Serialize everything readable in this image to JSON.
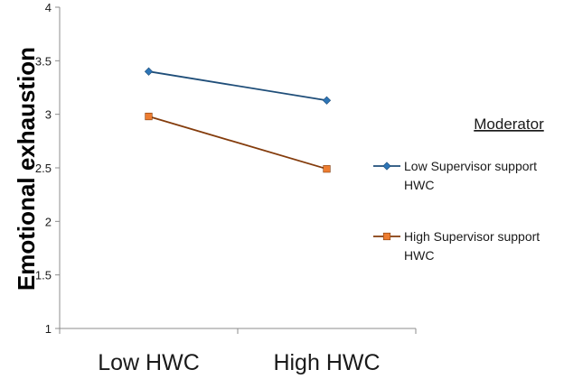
{
  "chart_data": {
    "type": "line",
    "categories": [
      "Low HWC",
      "High HWC"
    ],
    "ylabel": "Emotional exhaustion",
    "xlabel": "",
    "ylim": [
      1,
      4
    ],
    "yticks": [
      "1",
      "1.5",
      "2",
      "2.5",
      "3",
      "3.5",
      "4"
    ],
    "grid": false,
    "legend_position": "right",
    "legend_title": "Moderator",
    "series": [
      {
        "name": "Low Supervisor support HWC",
        "name_lines": [
          "Low Supervisor support",
          "HWC"
        ],
        "values": [
          3.4,
          3.13
        ],
        "color": "#1f4e79",
        "marker": "diamond",
        "marker_color": "#2e75b6"
      },
      {
        "name": "High Supervisor support HWC",
        "name_lines": [
          "High Supervisor support",
          "HWC"
        ],
        "values": [
          2.98,
          2.49
        ],
        "color": "#843c0c",
        "marker": "square",
        "marker_color": "#ed7d31"
      }
    ]
  }
}
